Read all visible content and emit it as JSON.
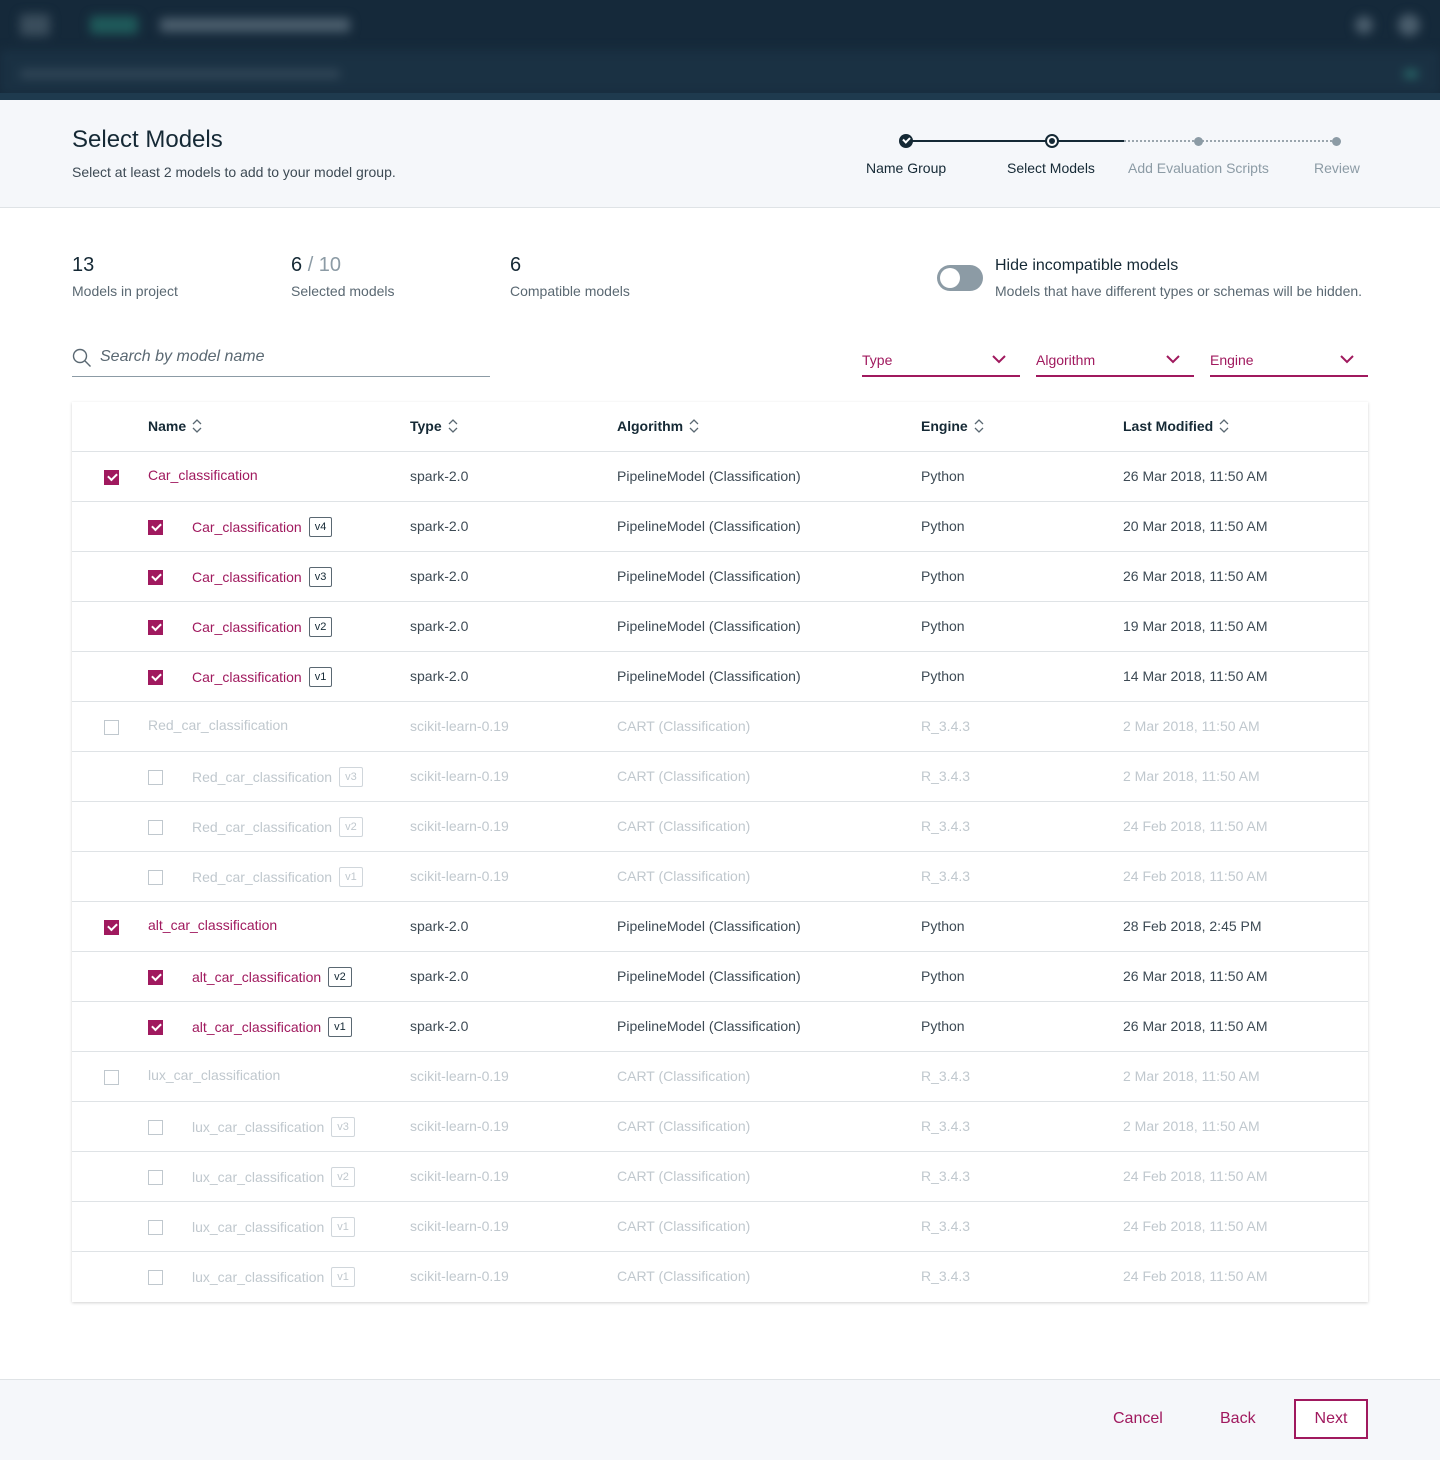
{
  "header": {
    "title": "Select Models",
    "subtitle": "Select at least 2 models to add to your model group."
  },
  "stepper": {
    "steps": [
      {
        "label": "Name Group",
        "state": "done"
      },
      {
        "label": "Select Models",
        "state": "current"
      },
      {
        "label": "Add Evaluation Scripts",
        "state": "future"
      },
      {
        "label": "Review",
        "state": "future"
      }
    ]
  },
  "stats": {
    "in_project": {
      "value": "13",
      "label": "Models in project"
    },
    "selected": {
      "value": "6",
      "max": "/ 10",
      "label": "Selected models"
    },
    "compatible": {
      "value": "6",
      "label": "Compatible models"
    }
  },
  "toggle": {
    "title": "Hide incompatible models",
    "description": "Models that have different types or schemas will be hidden.",
    "on": false
  },
  "search": {
    "placeholder": "Search by model name",
    "value": ""
  },
  "filters": {
    "type": "Type",
    "algorithm": "Algorithm",
    "engine": "Engine"
  },
  "table": {
    "columns": {
      "name": "Name",
      "type": "Type",
      "algorithm": "Algorithm",
      "engine": "Engine",
      "modified": "Last Modified"
    },
    "rows": [
      {
        "name": "Car_classification",
        "version": "",
        "child": false,
        "checked": true,
        "active": true,
        "type": "spark-2.0",
        "algorithm": "PipelineModel (Classification)",
        "engine": "Python",
        "modified": "26 Mar 2018, 11:50 AM"
      },
      {
        "name": "Car_classification",
        "version": "v4",
        "child": true,
        "checked": true,
        "active": true,
        "type": "spark-2.0",
        "algorithm": "PipelineModel (Classification)",
        "engine": "Python",
        "modified": "20 Mar 2018, 11:50 AM"
      },
      {
        "name": "Car_classification",
        "version": "v3",
        "child": true,
        "checked": true,
        "active": true,
        "type": "spark-2.0",
        "algorithm": "PipelineModel (Classification)",
        "engine": "Python",
        "modified": "26 Mar 2018, 11:50 AM"
      },
      {
        "name": "Car_classification",
        "version": "v2",
        "child": true,
        "checked": true,
        "active": true,
        "type": "spark-2.0",
        "algorithm": "PipelineModel (Classification)",
        "engine": "Python",
        "modified": "19 Mar 2018, 11:50 AM"
      },
      {
        "name": "Car_classification",
        "version": "v1",
        "child": true,
        "checked": true,
        "active": true,
        "type": "spark-2.0",
        "algorithm": "PipelineModel (Classification)",
        "engine": "Python",
        "modified": "14 Mar 2018, 11:50 AM"
      },
      {
        "name": "Red_car_classification",
        "version": "",
        "child": false,
        "checked": false,
        "active": false,
        "type": "scikit-learn-0.19",
        "algorithm": "CART (Classification)",
        "engine": "R_3.4.3",
        "modified": "2 Mar 2018, 11:50 AM"
      },
      {
        "name": "Red_car_classification",
        "version": "v3",
        "child": true,
        "checked": false,
        "active": false,
        "type": "scikit-learn-0.19",
        "algorithm": "CART (Classification)",
        "engine": "R_3.4.3",
        "modified": "2 Mar 2018, 11:50 AM"
      },
      {
        "name": "Red_car_classification",
        "version": "v2",
        "child": true,
        "checked": false,
        "active": false,
        "type": "scikit-learn-0.19",
        "algorithm": "CART (Classification)",
        "engine": "R_3.4.3",
        "modified": "24 Feb 2018, 11:50 AM"
      },
      {
        "name": "Red_car_classification",
        "version": "v1",
        "child": true,
        "checked": false,
        "active": false,
        "type": "scikit-learn-0.19",
        "algorithm": "CART (Classification)",
        "engine": "R_3.4.3",
        "modified": "24 Feb 2018, 11:50 AM"
      },
      {
        "name": "alt_car_classification",
        "version": "",
        "child": false,
        "checked": true,
        "active": true,
        "type": "spark-2.0",
        "algorithm": "PipelineModel (Classification)",
        "engine": "Python",
        "modified": "28 Feb 2018, 2:45 PM"
      },
      {
        "name": "alt_car_classification",
        "version": "v2",
        "child": true,
        "checked": true,
        "active": true,
        "type": "spark-2.0",
        "algorithm": "PipelineModel (Classification)",
        "engine": "Python",
        "modified": "26 Mar 2018, 11:50 AM"
      },
      {
        "name": "alt_car_classification",
        "version": "v1",
        "child": true,
        "checked": true,
        "active": true,
        "type": "spark-2.0",
        "algorithm": "PipelineModel (Classification)",
        "engine": "Python",
        "modified": "26 Mar 2018, 11:50 AM"
      },
      {
        "name": "lux_car_classification",
        "version": "",
        "child": false,
        "checked": false,
        "active": false,
        "type": "scikit-learn-0.19",
        "algorithm": "CART (Classification)",
        "engine": "R_3.4.3",
        "modified": "2 Mar 2018, 11:50 AM"
      },
      {
        "name": "lux_car_classification",
        "version": "v3",
        "child": true,
        "checked": false,
        "active": false,
        "type": "scikit-learn-0.19",
        "algorithm": "CART (Classification)",
        "engine": "R_3.4.3",
        "modified": "2 Mar 2018, 11:50 AM"
      },
      {
        "name": "lux_car_classification",
        "version": "v2",
        "child": true,
        "checked": false,
        "active": false,
        "type": "scikit-learn-0.19",
        "algorithm": "CART (Classification)",
        "engine": "R_3.4.3",
        "modified": "24 Feb 2018, 11:50 AM"
      },
      {
        "name": "lux_car_classification",
        "version": "v1",
        "child": true,
        "checked": false,
        "active": false,
        "type": "scikit-learn-0.19",
        "algorithm": "CART (Classification)",
        "engine": "R_3.4.3",
        "modified": "24 Feb 2018, 11:50 AM"
      },
      {
        "name": "lux_car_classification",
        "version": "v1",
        "child": true,
        "checked": false,
        "active": false,
        "type": "scikit-learn-0.19",
        "algorithm": "CART (Classification)",
        "engine": "R_3.4.3",
        "modified": "24 Feb 2018, 11:50 AM"
      }
    ]
  },
  "footer": {
    "cancel": "Cancel",
    "back": "Back",
    "next": "Next"
  },
  "colors": {
    "accent": "#a0195e",
    "header_bg": "#15293a",
    "text": "#152935",
    "disabled_text": "#c0c8ce"
  },
  "icons": {
    "search": "search-icon",
    "sort": "sort-icon",
    "chevron": "chevron-down-icon",
    "check": "checkmark-icon"
  }
}
